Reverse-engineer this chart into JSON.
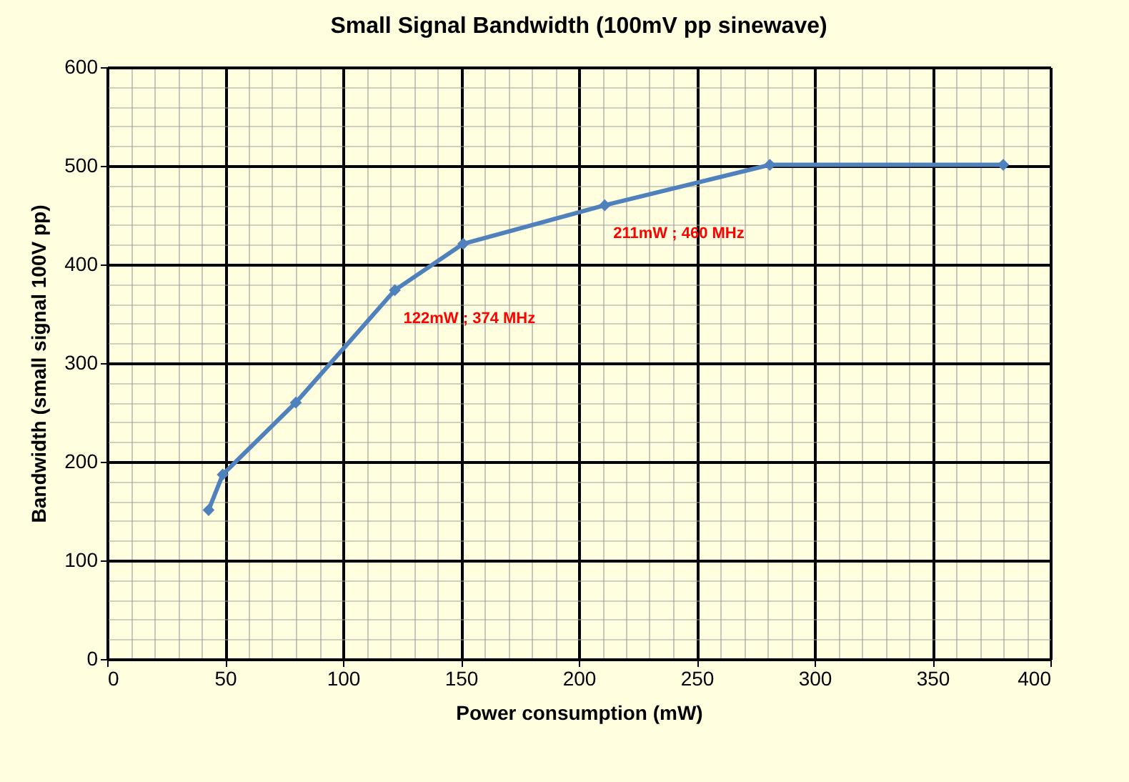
{
  "chart_data": {
    "type": "line",
    "title": "Small Signal Bandwidth (100mV pp sinewave)",
    "xlabel": "Power consumption (mW)",
    "ylabel": "Bandwidth (small signal 100V pp)",
    "x": [
      43,
      49,
      80,
      122,
      151,
      211,
      281,
      380
    ],
    "series": [
      {
        "color": "#4f81bd",
        "values": [
          151,
          187,
          260,
          374,
          421,
          460,
          501,
          501
        ]
      }
    ],
    "xlim": [
      0,
      400
    ],
    "xticks": [
      0,
      50,
      100,
      150,
      200,
      250,
      300,
      350,
      400
    ],
    "ylim": [
      0,
      600
    ],
    "yticks": [
      0,
      100,
      200,
      300,
      400,
      500,
      600
    ],
    "grid": true,
    "marker": "diamond",
    "line_style": "solid",
    "annotations": [
      {
        "text": "122mW ; 374 MHz",
        "x": 122,
        "y": 374
      },
      {
        "text": "211mW ;  460 MHz",
        "x": 211,
        "y": 460
      }
    ]
  }
}
